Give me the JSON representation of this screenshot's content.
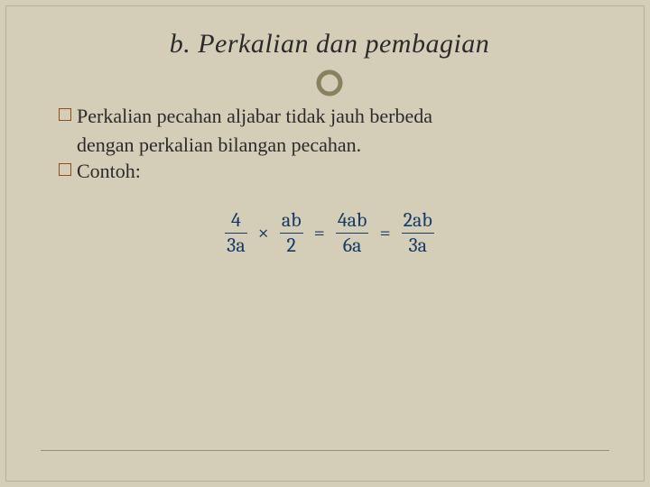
{
  "title": "b. Perkalian dan pembagian",
  "bullets": [
    {
      "firstLine": "Perkalian pecahan aljabar tidak jauh berbeda",
      "contLine": "dengan perkalian bilangan pecahan."
    },
    {
      "firstLine": "Contoh:"
    }
  ],
  "formula": {
    "color": "#173a66",
    "fontSize": 22,
    "terms": [
      {
        "type": "frac",
        "num": "4",
        "den": "3a"
      },
      {
        "type": "op",
        "text": "×"
      },
      {
        "type": "frac",
        "num": "ab",
        "den": "2"
      },
      {
        "type": "op",
        "text": "="
      },
      {
        "type": "frac",
        "num": "4ab",
        "den": "6a"
      },
      {
        "type": "op",
        "text": "="
      },
      {
        "type": "frac",
        "num": "2ab",
        "den": "3a"
      }
    ]
  },
  "styles": {
    "background": "#d4cdb8",
    "titleFontSize": 30,
    "bodyFontSize": 22,
    "bulletBorderColor": "#974a1a",
    "circleStroke": "#8a815f"
  }
}
